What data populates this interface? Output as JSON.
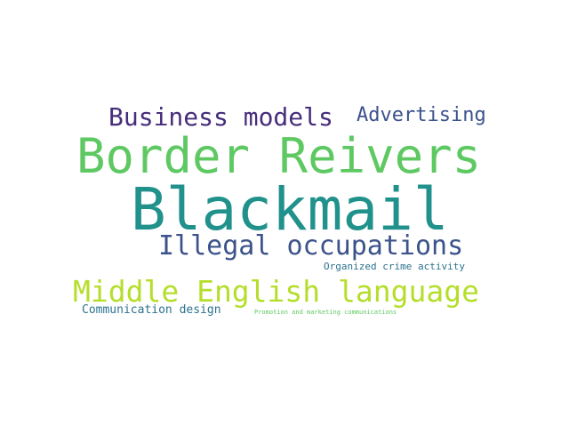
{
  "words": [
    {
      "text": "Blackmail",
      "color": "#21918c"
    },
    {
      "text": "Border Reivers",
      "color": "#5ec962"
    },
    {
      "text": "Middle English language",
      "color": "#b5de2b"
    },
    {
      "text": "Illegal occupations",
      "color": "#3b528b"
    },
    {
      "text": "Business models",
      "color": "#472d7b"
    },
    {
      "text": "Advertising",
      "color": "#3b528b"
    },
    {
      "text": "Communication design",
      "color": "#2c728e"
    },
    {
      "text": "Organized crime activity",
      "color": "#2c728e"
    },
    {
      "text": "Promotion and marketing communications",
      "color": "#5ec962"
    }
  ]
}
